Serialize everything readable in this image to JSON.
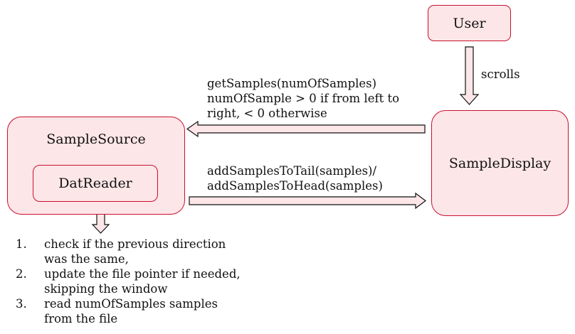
{
  "nodes": {
    "user": "User",
    "sample_display": "SampleDisplay",
    "sample_source": "SampleSource",
    "dat_reader": "DatReader"
  },
  "edges": {
    "scrolls": "scrolls",
    "get_samples": [
      "getSamples(numOfSamples)",
      "numOfSample > 0 if from left to",
      "right, < 0 otherwise"
    ],
    "add_samples": [
      "addSamplesToTail(samples)/",
      "addSamplesToHead(samples)"
    ]
  },
  "steps": [
    {
      "num": "1.",
      "text": "check if the previous direction was the same,"
    },
    {
      "num": "2.",
      "text": "update the file pointer if needed, skipping the window"
    },
    {
      "num": "3.",
      "text": "read numOfSamples samples from the file"
    }
  ],
  "colors": {
    "box_fill": "#fde6e8",
    "box_border": "#c8102e",
    "arrow_fill": "#fde6e8",
    "arrow_stroke": "#111111"
  }
}
